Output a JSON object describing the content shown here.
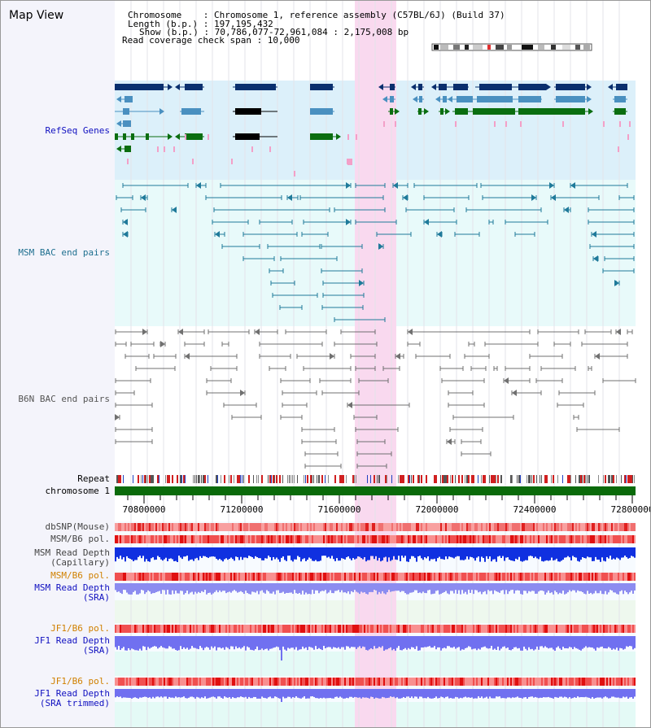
{
  "view_title": "Map View",
  "header": {
    "chromosome": "Chromosome    : Chromosome 1, reference assembly (C57BL/6J) (Build 37)",
    "length": "Length (b.p.) : 197,195,432",
    "show": "Show (b.p.) : 70,786,077-72,961,084 : 2,175,008 bp",
    "coverage": "Read coverage check span : 10,000"
  },
  "tracks": {
    "refseq": "RefSeq Genes",
    "msm_bac": "MSM BAC end pairs",
    "b6n_bac": "B6N BAC end pairs",
    "repeat": "Repeat",
    "chromosome": "chromosome 1",
    "dbsnp": "dbSNP(Mouse)",
    "msm_pol": "MSM/B6 pol.",
    "msm_depth_cap_1": "MSM Read Depth",
    "msm_depth_cap_2": "(Capillary)",
    "msm_pol_2": "MSM/B6 pol.",
    "msm_depth_sra_1": "MSM Read Depth",
    "msm_depth_sra_2": "(SRA)",
    "jf1_pol": "JF1/B6 pol.",
    "jf1_depth_sra_1": "JF1 Read Depth",
    "jf1_depth_sra_2": "(SRA)",
    "jf1_pol_2": "JF1/B6 pol.",
    "jf1_depth_trim_1": "JF1 Read Depth",
    "jf1_depth_trim_2": "(SRA trimmed)"
  },
  "axis": {
    "ticks": [
      "70800000",
      "71200000",
      "71600000",
      "72000000",
      "72400000",
      "72800000"
    ]
  },
  "colors": {
    "refseq_bg": "#dcf0fa",
    "msm_bg": "#e8fafa",
    "b6n_bg": "#ffffff",
    "highlight": "#f9d9ef",
    "gene_dark": "#0a2f6e",
    "gene_mid": "#4a90c0",
    "gene_green": "#0a6e10",
    "bac_msm": "#1f7a9a",
    "bac_b6n": "#707070",
    "chromosome_bar": "#0a6a0a",
    "snp": "#f07070",
    "depth_blue": "#1030e0",
    "depth_sra": "#8c8cf0",
    "label_blue": "#1010c0",
    "label_teal": "#207090",
    "label_orange": "#d08000"
  }
}
